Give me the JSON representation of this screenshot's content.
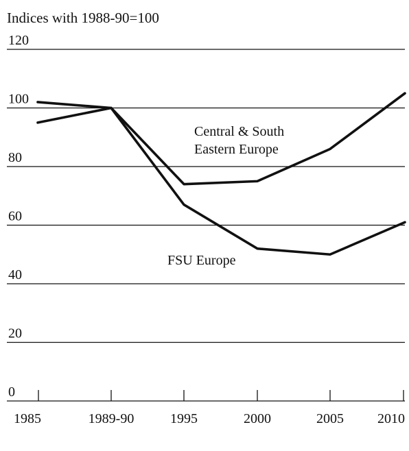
{
  "chart_data": {
    "type": "line",
    "title": "Indices with 1988-90=100",
    "categories": [
      "1985",
      "1989-90",
      "1995",
      "2000",
      "2005",
      "2010"
    ],
    "yticks": [
      0,
      20,
      40,
      60,
      80,
      100,
      120
    ],
    "ylim": [
      0,
      120
    ],
    "grid": true,
    "series": [
      {
        "name": "Central & South Eastern Europe",
        "values": [
          102,
          100,
          74,
          75,
          86,
          105
        ]
      },
      {
        "name": "FSU Europe",
        "values": [
          95,
          100,
          67,
          52,
          50,
          61
        ]
      }
    ],
    "annotations": [
      {
        "series": 0,
        "lines": [
          "Central & South",
          "Eastern Europe"
        ]
      },
      {
        "series": 1,
        "lines": [
          "FSU Europe"
        ]
      }
    ]
  }
}
